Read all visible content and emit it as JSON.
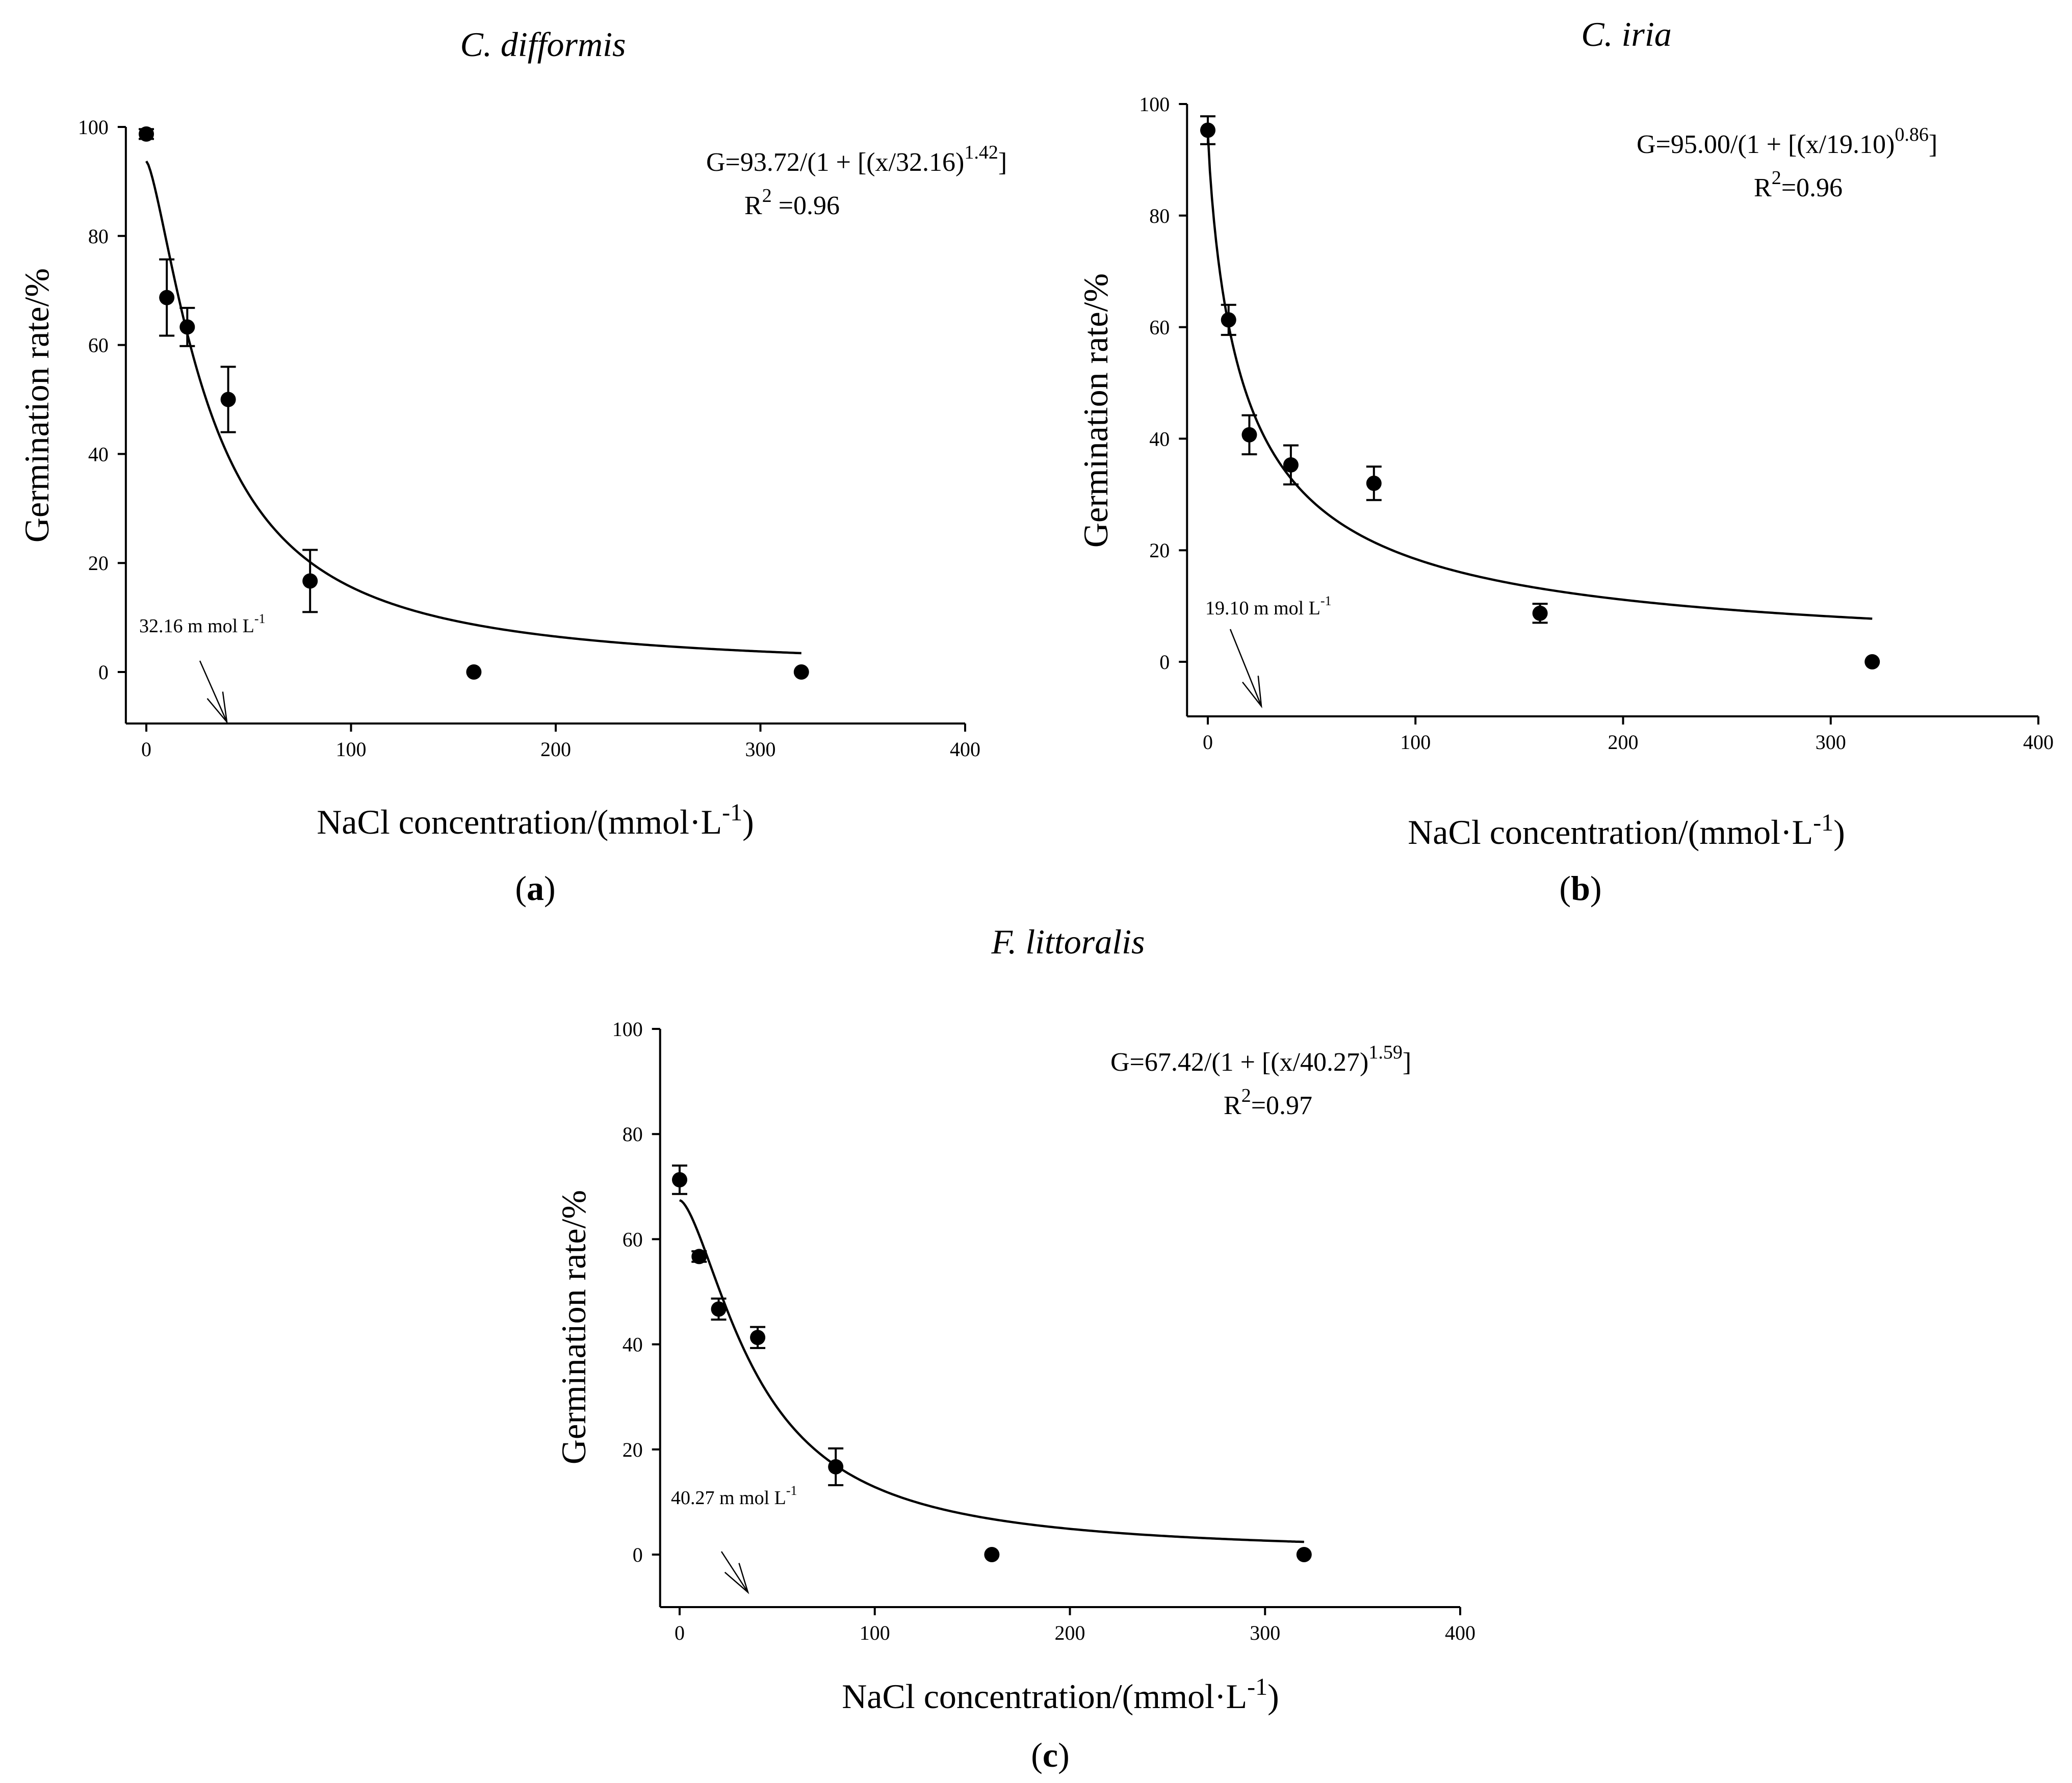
{
  "chart_data": [
    {
      "id": "a",
      "type": "scatter",
      "title": "C. difformis",
      "panel_label": "a",
      "xlabel": "NaCl concentration/(mmol·L",
      "xlabel_sup": "-1",
      "xlabel_close": ")",
      "ylabel": "Germination rate/%",
      "xlim": [
        -10,
        400
      ],
      "ylim": [
        -10,
        100
      ],
      "x_ticks": [
        0,
        100,
        200,
        300,
        400
      ],
      "y_ticks": [
        0,
        20,
        40,
        60,
        80,
        100
      ],
      "points": [
        {
          "x": 0,
          "y": 98.7,
          "err": 0.9
        },
        {
          "x": 10,
          "y": 68.7,
          "err": 7
        },
        {
          "x": 20,
          "y": 63.3,
          "err": 3.5
        },
        {
          "x": 40,
          "y": 50,
          "err": 6
        },
        {
          "x": 80,
          "y": 16.7,
          "err": 5.7
        },
        {
          "x": 160,
          "y": 0,
          "err": 0
        },
        {
          "x": 320,
          "y": 0,
          "err": 0
        }
      ],
      "fit": {
        "a": 93.72,
        "x50": 32.16,
        "b": 1.42,
        "x_min": 0,
        "x_max": 320
      },
      "equation": {
        "text": "G=93.72/(1 + [(x/32.16)",
        "sup": "1.42",
        "close": "]",
        "r2_text": "R",
        "r2_sup": "2",
        "r2_value": " =0.96"
      },
      "annotation": {
        "text": "32.16 m mol L",
        "sup": "-1"
      }
    },
    {
      "id": "b",
      "type": "scatter",
      "title": "C. iria",
      "panel_label": "b",
      "xlabel": "NaCl concentration/(mmol·L",
      "xlabel_sup": "-1",
      "xlabel_close": ")",
      "ylabel": "Germination rate/%",
      "xlim": [
        -10,
        400
      ],
      "ylim": [
        -10,
        100
      ],
      "x_ticks": [
        0,
        100,
        200,
        300,
        400
      ],
      "y_ticks": [
        0,
        20,
        40,
        60,
        80,
        100
      ],
      "points": [
        {
          "x": 0,
          "y": 95.3,
          "err": 2.5
        },
        {
          "x": 10,
          "y": 61.3,
          "err": 2.7
        },
        {
          "x": 20,
          "y": 40.7,
          "err": 3.5
        },
        {
          "x": 40,
          "y": 35.3,
          "err": 3.5
        },
        {
          "x": 80,
          "y": 32,
          "err": 3
        },
        {
          "x": 160,
          "y": 8.7,
          "err": 1.7
        },
        {
          "x": 320,
          "y": 0,
          "err": 0
        }
      ],
      "fit": {
        "a": 95.0,
        "x50": 19.1,
        "b": 0.86,
        "x_min": 0,
        "x_max": 320
      },
      "equation": {
        "text": "G=95.00/(1 + [(x/19.10)",
        "sup": "0.86",
        "close": "]",
        "r2_text": "R",
        "r2_sup": "2",
        "r2_value": "=0.96"
      },
      "annotation": {
        "text": "19.10 m mol L",
        "sup": "-1"
      }
    },
    {
      "id": "c",
      "type": "scatter",
      "title": "F. littoralis",
      "panel_label": "c",
      "xlabel": "NaCl concentration/(mmol·L",
      "xlabel_sup": "-1",
      "xlabel_close": ")",
      "ylabel": "Germination rate/%",
      "xlim": [
        -10,
        400
      ],
      "ylim": [
        -10,
        100
      ],
      "x_ticks": [
        0,
        100,
        200,
        300,
        400
      ],
      "y_ticks": [
        0,
        20,
        40,
        60,
        80,
        100
      ],
      "points": [
        {
          "x": 0,
          "y": 71.3,
          "err": 2.7
        },
        {
          "x": 10,
          "y": 56.7,
          "err": 1
        },
        {
          "x": 20,
          "y": 46.7,
          "err": 2
        },
        {
          "x": 40,
          "y": 41.3,
          "err": 2
        },
        {
          "x": 80,
          "y": 16.7,
          "err": 3.5
        },
        {
          "x": 160,
          "y": 0,
          "err": 0
        },
        {
          "x": 320,
          "y": 0,
          "err": 0
        }
      ],
      "fit": {
        "a": 67.42,
        "x50": 40.27,
        "b": 1.59,
        "x_min": 0,
        "x_max": 320
      },
      "equation": {
        "text": "G=67.42/(1 + [(x/40.27)",
        "sup": "1.59",
        "close": "]",
        "r2_text": "R",
        "r2_sup": "2",
        "r2_value": "=0.97"
      },
      "annotation": {
        "text": "40.27 m mol L",
        "sup": "-1"
      }
    }
  ]
}
